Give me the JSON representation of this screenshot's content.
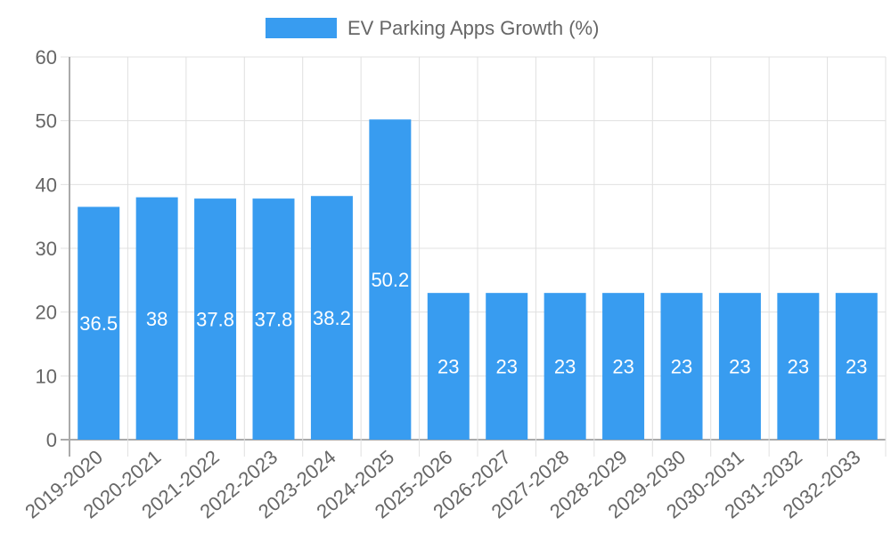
{
  "chart_data": {
    "type": "bar",
    "title": "",
    "legend": [
      "EV Parking Apps Growth (%)"
    ],
    "legend_position": "top",
    "xlabel": "",
    "ylabel": "",
    "ylim": [
      0,
      60
    ],
    "yticks": [
      0,
      10,
      20,
      30,
      40,
      50,
      60
    ],
    "grid": true,
    "categories": [
      "2019-2020",
      "2020-2021",
      "2021-2022",
      "2022-2023",
      "2023-2024",
      "2024-2025",
      "2025-2026",
      "2026-2027",
      "2027-2028",
      "2028-2029",
      "2029-2030",
      "2030-2031",
      "2031-2032",
      "2032-2033"
    ],
    "series": [
      {
        "name": "EV Parking Apps Growth (%)",
        "values": [
          36.5,
          38,
          37.8,
          37.8,
          38.2,
          50.2,
          23,
          23,
          23,
          23,
          23,
          23,
          23,
          23
        ],
        "color": "#389cf0"
      }
    ],
    "data_labels": [
      "36.5",
      "38",
      "37.8",
      "37.8",
      "38.2",
      "50.2",
      "23",
      "23",
      "23",
      "23",
      "23",
      "23",
      "23",
      "23"
    ]
  }
}
